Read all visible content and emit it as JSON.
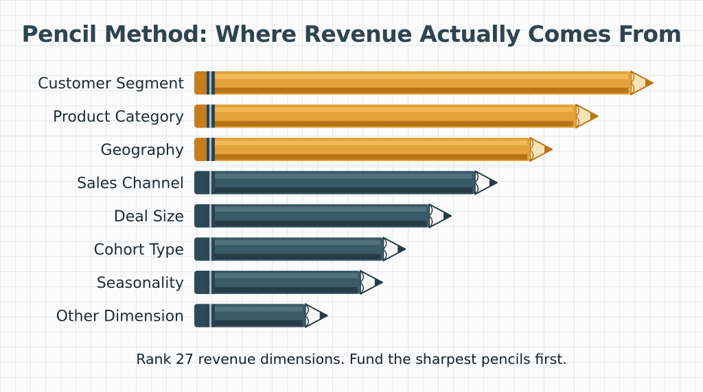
{
  "chart_data": {
    "type": "bar",
    "orientation": "horizontal",
    "title": "Pencil Method: Where Revenue Actually Comes From",
    "subtitle": "Rank 27 revenue dimensions. Fund the sharpest pencils first.",
    "categories": [
      "Customer Segment",
      "Product Category",
      "Geography",
      "Sales Channel",
      "Deal Size",
      "Cohort Type",
      "Seasonality",
      "Other Dimension"
    ],
    "values": [
      100,
      88,
      78,
      66,
      56,
      46,
      41,
      29
    ],
    "value_scale": "relative, unlabeled axis",
    "highlight_top_n": 3,
    "xlabel": "",
    "ylabel": "",
    "xlim": [
      0,
      100
    ],
    "grid": false,
    "legend": "none",
    "colors": {
      "highlight_body": "#e3a23b",
      "highlight_stripe": "#f2b957",
      "highlight_shadow": "#b87515",
      "highlight_wood": "#f7e3b8",
      "highlight_lead": "#b87515",
      "base_body": "#3b5a67",
      "base_stripe": "#50717e",
      "base_shadow": "#253c46",
      "base_wood": "#f5f6f6",
      "base_lead": "#253c46",
      "ferrule": "#2c4453",
      "ferrule_band": "#aabfc9",
      "eraser_highlight": "#c47e1f",
      "eraser_base": "#2e4a56"
    }
  }
}
